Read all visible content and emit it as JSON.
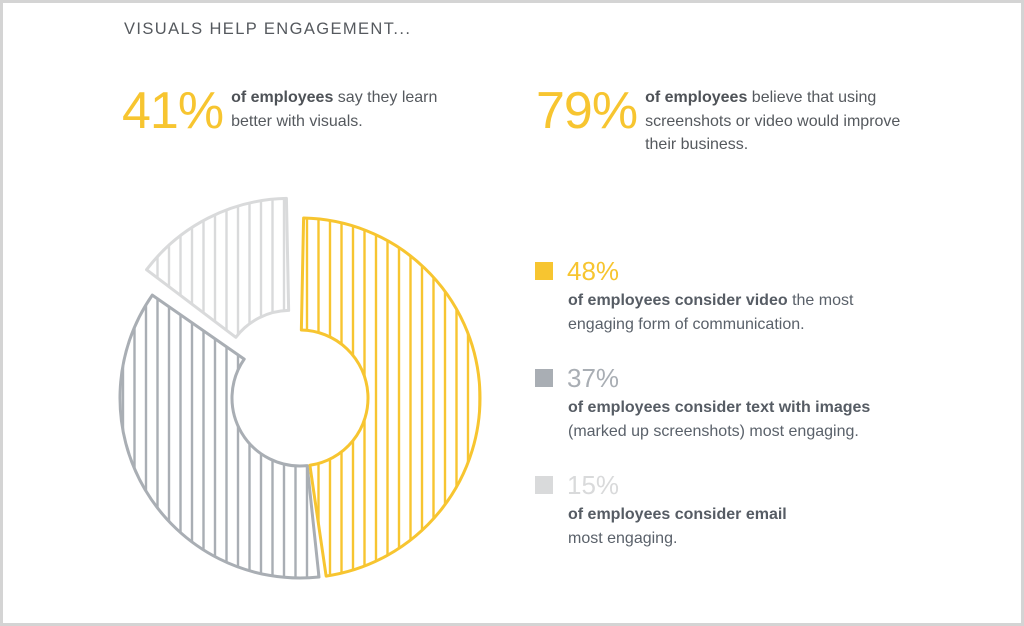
{
  "heading": "VISUALS HELP ENGAGEMENT...",
  "stats": [
    {
      "value": "41%",
      "bold": "of employees",
      "rest": " say they learn better with visuals."
    },
    {
      "value": "79%",
      "bold": "of employees",
      "rest": " believe that using screenshots or video would improve their business."
    }
  ],
  "colors": {
    "accent": "#f7c530",
    "video": "#f7c530",
    "text_images": "#a9aeb4",
    "email": "#d9dadb"
  },
  "chart_data": {
    "type": "pie",
    "style": "donut-hatched",
    "slices": [
      {
        "label": "48%",
        "value": 48,
        "color": "#f7c530"
      },
      {
        "label": "37%",
        "value": 37,
        "color": "#a9aeb4"
      },
      {
        "label": "15%",
        "value": 15,
        "color": "#d9dadb"
      }
    ]
  },
  "legend": [
    {
      "pct": "48%",
      "bold": "of employees consider video",
      "rest": " the most engaging form of communication.",
      "color": "#f7c530"
    },
    {
      "pct": "37%",
      "bold": "of employees consider text with images",
      "rest": " (marked up screenshots) most engaging.",
      "color": "#a9aeb4"
    },
    {
      "pct": "15%",
      "bold": "of employees consider email",
      "rest": " most engaging.",
      "color": "#d9dadb"
    }
  ]
}
